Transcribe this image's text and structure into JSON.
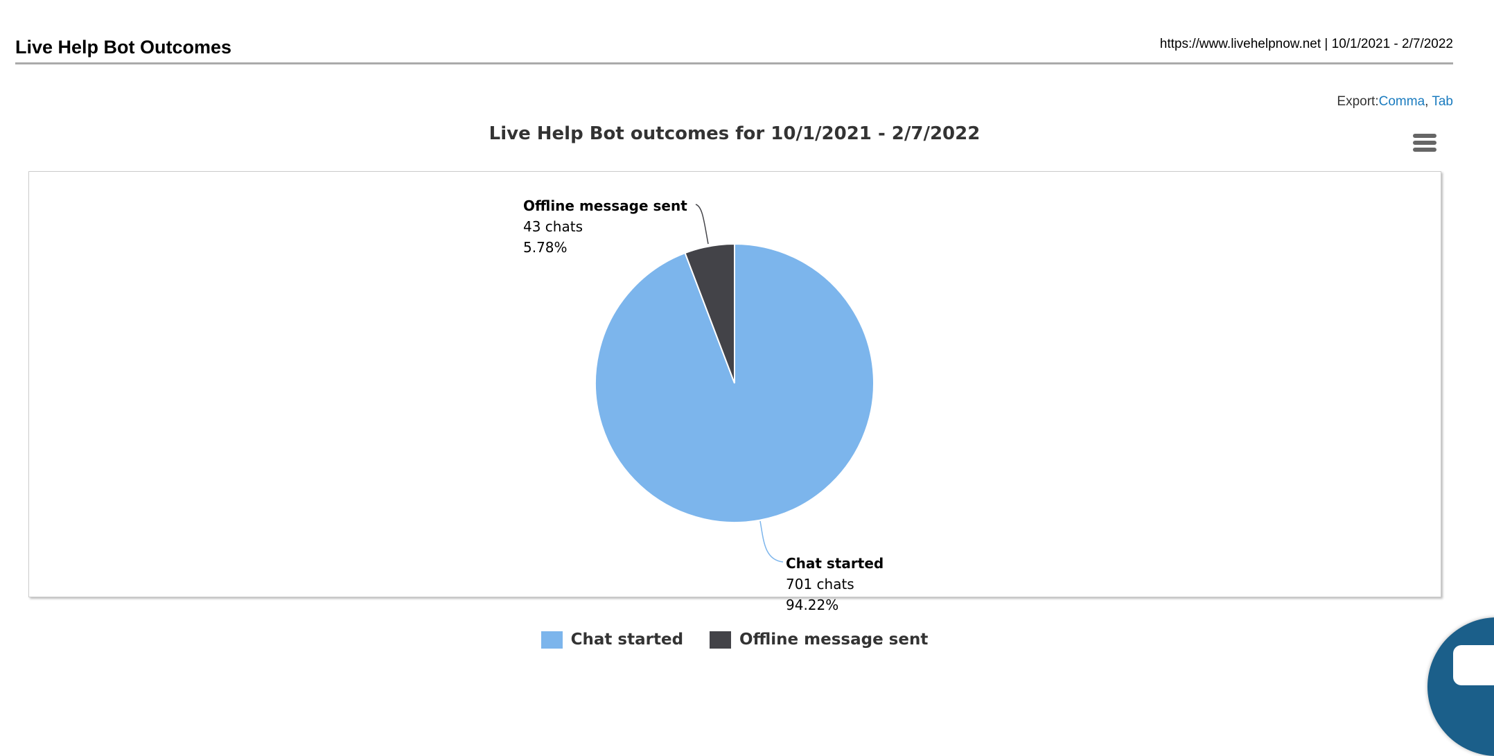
{
  "header": {
    "title": "Live Help Bot Outcomes",
    "meta": "https://www.livehelpnow.net | 10/1/2021 - 2/7/2022"
  },
  "export": {
    "label": "Export:",
    "comma": "Comma",
    "sep": ", ",
    "tab": "Tab"
  },
  "chart_data": {
    "type": "pie",
    "title": "Live Help Bot outcomes for 10/1/2021 - 2/7/2022",
    "slices": [
      {
        "name": "Chat started",
        "value": 701,
        "value_label": "701 chats",
        "percent": 94.22,
        "percent_label": "94.22%",
        "color": "#7cb5ec"
      },
      {
        "name": "Offline message sent",
        "value": 43,
        "value_label": "43 chats",
        "percent": 5.78,
        "percent_label": "5.78%",
        "color": "#434348"
      }
    ],
    "legend_placement": "bottom-center"
  },
  "icons": {
    "menu": "hamburger-menu-icon",
    "chat": "chat-bubble-icon"
  }
}
